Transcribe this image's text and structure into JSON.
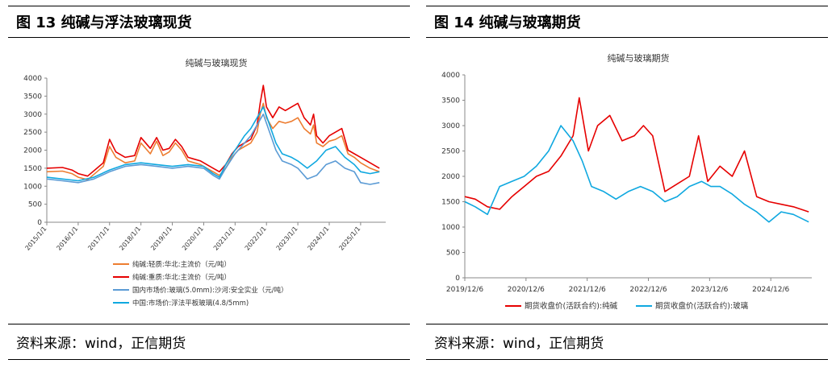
{
  "figures": [
    {
      "figure_title": "图 13  纯碱与浮法玻璃现货",
      "source": "资料来源：wind，正信期货"
    },
    {
      "figure_title": "图 14  纯碱与玻璃期货",
      "source": "资料来源：wind，正信期货"
    }
  ],
  "chart_data": [
    {
      "type": "line",
      "title": "纯碱与玻璃现货",
      "ylim": [
        0,
        4000
      ],
      "yticks": [
        0,
        500,
        1000,
        1500,
        2000,
        2500,
        3000,
        3500,
        4000
      ],
      "xlim": [
        2015.0,
        2025.8
      ],
      "xticks": [
        2015,
        2016,
        2017,
        2018,
        2019,
        2020,
        2021,
        2022,
        2023,
        2024,
        2025
      ],
      "xtick_labels": [
        "2015/1/1",
        "2016/1/1",
        "2017/1/1",
        "2018/1/1",
        "2019/1/1",
        "2020/1/1",
        "2021/1/1",
        "2022/1/1",
        "2023/1/1",
        "2024/1/1",
        "2025/1/1"
      ],
      "legend_position": "bottom",
      "colors": [
        "#ED7D31",
        "#E60000",
        "#5B9BD5",
        "#0FA8E0"
      ],
      "series": [
        {
          "name": "纯碱:轻质:华北:主流价（元/吨）",
          "color": "#ED7D31",
          "x": [
            2015.0,
            2015.5,
            2015.8,
            2016.0,
            2016.3,
            2016.6,
            2016.8,
            2017.0,
            2017.2,
            2017.5,
            2017.8,
            2018.0,
            2018.3,
            2018.5,
            2018.7,
            2018.9,
            2019.1,
            2019.3,
            2019.5,
            2019.7,
            2019.9,
            2020.1,
            2020.3,
            2020.5,
            2020.7,
            2020.9,
            2021.1,
            2021.3,
            2021.5,
            2021.7,
            2021.8,
            2021.9,
            2022.0,
            2022.2,
            2022.4,
            2022.6,
            2022.8,
            2023.0,
            2023.2,
            2023.4,
            2023.5,
            2023.6,
            2023.8,
            2024.0,
            2024.2,
            2024.4,
            2024.6,
            2024.8,
            2025.0,
            2025.3,
            2025.6
          ],
          "y": [
            1400,
            1420,
            1350,
            1250,
            1180,
            1400,
            1550,
            2100,
            1800,
            1650,
            1700,
            2200,
            1900,
            2250,
            1850,
            1950,
            2200,
            2000,
            1700,
            1650,
            1600,
            1500,
            1400,
            1300,
            1500,
            1800,
            2000,
            2100,
            2200,
            2500,
            3000,
            3300,
            2900,
            2600,
            2800,
            2750,
            2800,
            2900,
            2600,
            2450,
            2700,
            2200,
            2100,
            2250,
            2300,
            2400,
            1900,
            1800,
            1650,
            1500,
            1400
          ]
        },
        {
          "name": "纯碱:重质:华北:主流价（元/吨）",
          "color": "#E60000",
          "x": [
            2015.0,
            2015.5,
            2015.8,
            2016.0,
            2016.3,
            2016.6,
            2016.8,
            2017.0,
            2017.2,
            2017.5,
            2017.8,
            2018.0,
            2018.3,
            2018.5,
            2018.7,
            2018.9,
            2019.1,
            2019.3,
            2019.5,
            2019.7,
            2019.9,
            2020.1,
            2020.3,
            2020.5,
            2020.7,
            2020.9,
            2021.1,
            2021.3,
            2021.5,
            2021.7,
            2021.8,
            2021.9,
            2022.0,
            2022.2,
            2022.4,
            2022.6,
            2022.8,
            2023.0,
            2023.2,
            2023.4,
            2023.5,
            2023.6,
            2023.8,
            2024.0,
            2024.2,
            2024.4,
            2024.6,
            2024.8,
            2025.0,
            2025.3,
            2025.6
          ],
          "y": [
            1500,
            1520,
            1450,
            1350,
            1280,
            1500,
            1650,
            2300,
            1950,
            1800,
            1850,
            2350,
            2050,
            2350,
            2000,
            2050,
            2300,
            2100,
            1800,
            1750,
            1700,
            1600,
            1500,
            1400,
            1600,
            1900,
            2100,
            2200,
            2300,
            2700,
            3300,
            3800,
            3200,
            2900,
            3200,
            3100,
            3200,
            3300,
            2900,
            2700,
            3000,
            2400,
            2200,
            2400,
            2500,
            2600,
            2000,
            1900,
            1800,
            1650,
            1500
          ]
        },
        {
          "name": "国内市场价:玻璃(5.0mm):沙河:安全实业（元/吨）",
          "color": "#5B9BD5",
          "x": [
            2015.0,
            2015.5,
            2016.0,
            2016.5,
            2017.0,
            2017.5,
            2018.0,
            2018.5,
            2019.0,
            2019.5,
            2020.0,
            2020.3,
            2020.5,
            2020.7,
            2021.0,
            2021.3,
            2021.5,
            2021.7,
            2021.9,
            2022.1,
            2022.3,
            2022.5,
            2022.8,
            2023.0,
            2023.3,
            2023.6,
            2023.9,
            2024.2,
            2024.5,
            2024.8,
            2025.0,
            2025.3,
            2025.6
          ],
          "y": [
            1200,
            1150,
            1100,
            1200,
            1400,
            1550,
            1600,
            1550,
            1500,
            1550,
            1500,
            1300,
            1200,
            1500,
            1900,
            2200,
            2400,
            2700,
            3000,
            2500,
            2000,
            1700,
            1600,
            1500,
            1200,
            1300,
            1600,
            1700,
            1500,
            1400,
            1100,
            1050,
            1100
          ]
        },
        {
          "name": "中国:市场价:浮法平板玻璃(4.8/5mm)",
          "color": "#0FA8E0",
          "x": [
            2015.0,
            2015.5,
            2016.0,
            2016.5,
            2017.0,
            2017.5,
            2018.0,
            2018.5,
            2019.0,
            2019.5,
            2020.0,
            2020.3,
            2020.5,
            2020.7,
            2021.0,
            2021.3,
            2021.5,
            2021.7,
            2021.9,
            2022.1,
            2022.3,
            2022.5,
            2022.8,
            2023.0,
            2023.3,
            2023.6,
            2023.9,
            2024.2,
            2024.5,
            2024.8,
            2025.0,
            2025.3,
            2025.6
          ],
          "y": [
            1250,
            1200,
            1150,
            1250,
            1450,
            1600,
            1650,
            1600,
            1550,
            1600,
            1550,
            1350,
            1250,
            1600,
            2000,
            2400,
            2600,
            2900,
            3200,
            2700,
            2200,
            1900,
            1800,
            1700,
            1500,
            1700,
            2000,
            2100,
            1800,
            1600,
            1400,
            1350,
            1400
          ]
        }
      ]
    },
    {
      "type": "line",
      "title": "纯碱与玻璃期货",
      "ylim": [
        0,
        4000
      ],
      "yticks": [
        0,
        500,
        1000,
        1500,
        2000,
        2500,
        3000,
        3500,
        4000
      ],
      "xlim": [
        2019.93,
        2025.6
      ],
      "xticks": [
        2019.93,
        2020.93,
        2021.93,
        2022.93,
        2023.93,
        2024.93
      ],
      "xtick_labels": [
        "2019/12/6",
        "2020/12/6",
        "2021/12/6",
        "2022/12/6",
        "2023/12/6",
        "2024/12/6"
      ],
      "legend_position": "bottom",
      "colors": [
        "#E60000",
        "#0FA8E0"
      ],
      "series": [
        {
          "name": "期货收盘价(活跃合约):纯碱",
          "color": "#E60000",
          "x": [
            2019.93,
            2020.1,
            2020.3,
            2020.5,
            2020.7,
            2020.9,
            2021.1,
            2021.3,
            2021.5,
            2021.7,
            2021.8,
            2021.95,
            2022.1,
            2022.3,
            2022.5,
            2022.7,
            2022.85,
            2023.0,
            2023.2,
            2023.4,
            2023.6,
            2023.75,
            2023.9,
            2024.1,
            2024.3,
            2024.5,
            2024.7,
            2024.9,
            2025.1,
            2025.3,
            2025.55
          ],
          "y": [
            1600,
            1550,
            1400,
            1350,
            1600,
            1800,
            2000,
            2100,
            2400,
            2800,
            3550,
            2500,
            3000,
            3200,
            2700,
            2800,
            3000,
            2800,
            1700,
            1850,
            2000,
            2800,
            1900,
            2200,
            2000,
            2500,
            1600,
            1500,
            1450,
            1400,
            1300
          ]
        },
        {
          "name": "期货收盘价(活跃合约):玻璃",
          "color": "#0FA8E0",
          "x": [
            2019.93,
            2020.1,
            2020.3,
            2020.5,
            2020.7,
            2020.9,
            2021.1,
            2021.3,
            2021.5,
            2021.7,
            2021.85,
            2022.0,
            2022.2,
            2022.4,
            2022.6,
            2022.8,
            2023.0,
            2023.2,
            2023.4,
            2023.6,
            2023.8,
            2023.95,
            2024.1,
            2024.3,
            2024.5,
            2024.7,
            2024.9,
            2025.1,
            2025.3,
            2025.55
          ],
          "y": [
            1500,
            1400,
            1250,
            1800,
            1900,
            2000,
            2200,
            2500,
            3000,
            2700,
            2300,
            1800,
            1700,
            1550,
            1700,
            1800,
            1700,
            1500,
            1600,
            1800,
            1900,
            1800,
            1800,
            1650,
            1450,
            1300,
            1100,
            1300,
            1250,
            1100
          ]
        }
      ]
    }
  ]
}
